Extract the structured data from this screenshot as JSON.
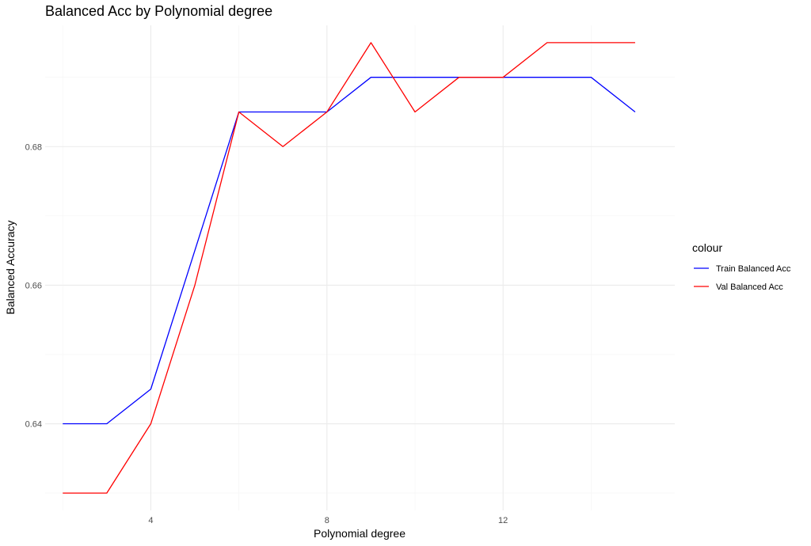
{
  "chart_data": {
    "type": "line",
    "title": "Balanced Acc by Polynomial degree",
    "xlabel": "Polynomial degree",
    "ylabel": "Balanced Accuracy",
    "x": [
      2,
      3,
      4,
      5,
      6,
      7,
      8,
      9,
      10,
      11,
      12,
      13,
      14,
      15
    ],
    "xlim": [
      1.6,
      15.9
    ],
    "ylim": [
      0.6275,
      0.6975
    ],
    "x_ticks": [
      4,
      8,
      12
    ],
    "x_tick_labels": [
      "4",
      "8",
      "12"
    ],
    "x_minor_ticks": [
      2,
      6,
      10,
      14
    ],
    "y_ticks": [
      0.64,
      0.66,
      0.68
    ],
    "y_tick_labels": [
      "0.64",
      "0.66",
      "0.68"
    ],
    "y_minor_ticks": [
      0.63,
      0.65,
      0.67,
      0.69
    ],
    "grid": true,
    "legend_title": "colour",
    "legend_position": "right",
    "series": [
      {
        "name": "Train Balanced Acc",
        "color": "#0000ff",
        "values": [
          0.64,
          0.64,
          0.645,
          0.665,
          0.685,
          0.685,
          0.685,
          0.69,
          0.69,
          0.69,
          0.69,
          0.69,
          0.69,
          0.685
        ]
      },
      {
        "name": "Val Balanced Acc",
        "color": "#ff0000",
        "values": [
          0.63,
          0.63,
          0.64,
          0.66,
          0.685,
          0.68,
          0.685,
          0.695,
          0.685,
          0.69,
          0.69,
          0.695,
          0.695,
          0.695
        ]
      }
    ]
  }
}
